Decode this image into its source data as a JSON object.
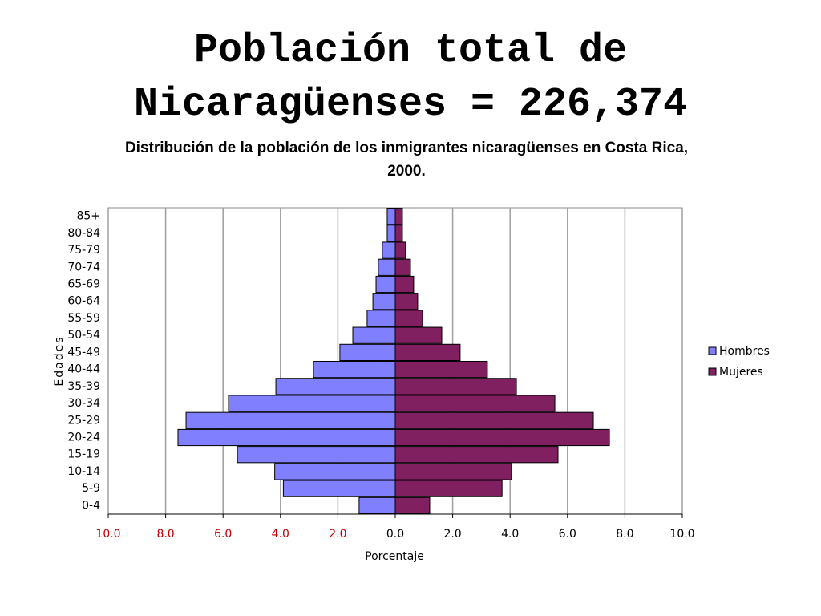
{
  "chart_data": {
    "type": "pyramid",
    "title": [
      "Población total de",
      "Nicaragüenses = 226,374"
    ],
    "subtitle": [
      "Distribución de la población de los inmigrantes nicaragüenses en Costa Rica,",
      "2000."
    ],
    "xlabel": "Porcentaje",
    "ylabel": "Edades",
    "categories": [
      "0-4",
      "5-9",
      "10-14",
      "15-19",
      "20-24",
      "25-29",
      "30-34",
      "35-39",
      "40-44",
      "45-49",
      "50-54",
      "55-59",
      "60-64",
      "65-69",
      "70-74",
      "75-79",
      "80-84",
      "85+"
    ],
    "series": [
      {
        "name": "Hombres",
        "color": "#8080ff",
        "values": [
          -1.26,
          -3.9,
          -4.2,
          -5.5,
          -7.57,
          -7.29,
          -5.81,
          -4.16,
          -2.85,
          -1.93,
          -1.48,
          -0.98,
          -0.78,
          -0.67,
          -0.59,
          -0.45,
          -0.28,
          -0.28
        ]
      },
      {
        "name": "Mujeres",
        "color": "#802060",
        "values": [
          1.2,
          3.72,
          4.05,
          5.67,
          7.46,
          6.9,
          5.56,
          4.22,
          3.21,
          2.26,
          1.62,
          0.95,
          0.78,
          0.64,
          0.53,
          0.36,
          0.25,
          0.25
        ]
      }
    ],
    "xlim": [
      -10,
      10
    ],
    "xticks": [
      {
        "value": -10,
        "label": "10.0"
      },
      {
        "value": -8,
        "label": "8.0"
      },
      {
        "value": -6,
        "label": "6.0"
      },
      {
        "value": -4,
        "label": "4.0"
      },
      {
        "value": -2,
        "label": "2.0"
      },
      {
        "value": 0,
        "label": "0.0"
      },
      {
        "value": 2,
        "label": "2.0"
      },
      {
        "value": 4,
        "label": "4.0"
      },
      {
        "value": 6,
        "label": "6.0"
      },
      {
        "value": 8,
        "label": "8.0"
      },
      {
        "value": 10,
        "label": "10.0"
      }
    ],
    "grid": true,
    "legend": "right"
  }
}
